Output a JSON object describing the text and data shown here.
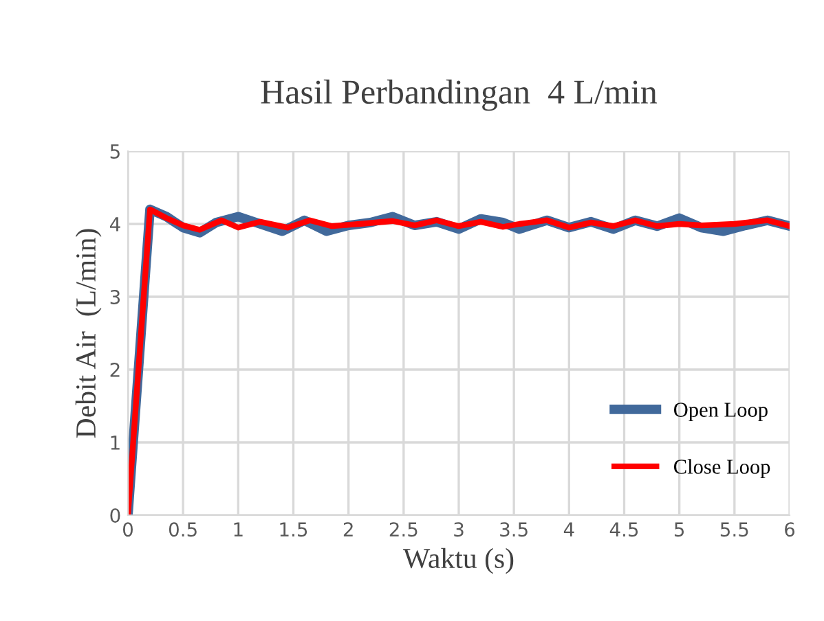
{
  "chart_data": {
    "type": "line",
    "title": "Hasil Perbandingan  4 L/min",
    "xlabel": "Waktu (s)",
    "ylabel": "Debit Air  (L/min)",
    "xlim": [
      0,
      6
    ],
    "ylim": [
      0,
      5
    ],
    "xticks": [
      0,
      0.5,
      1,
      1.5,
      2,
      2.5,
      3,
      3.5,
      4,
      4.5,
      5,
      5.5,
      6
    ],
    "yticks": [
      0,
      1,
      2,
      3,
      4,
      5
    ],
    "grid": true,
    "legend": "bottom right",
    "marker": "none",
    "series": [
      {
        "name": "Open Loop",
        "color": "#41699b",
        "x": [
          0,
          0.2,
          0.35,
          0.5,
          0.65,
          0.8,
          1.0,
          1.2,
          1.4,
          1.6,
          1.8,
          2.0,
          2.2,
          2.4,
          2.6,
          2.8,
          3.0,
          3.2,
          3.4,
          3.55,
          3.8,
          4.0,
          4.2,
          4.4,
          4.6,
          4.8,
          5.0,
          5.2,
          5.4,
          5.6,
          5.8,
          6.0
        ],
        "values": [
          0,
          4.2,
          4.1,
          3.95,
          3.88,
          4.02,
          4.1,
          4.0,
          3.9,
          4.05,
          3.9,
          3.98,
          4.02,
          4.1,
          3.98,
          4.03,
          3.93,
          4.07,
          4.02,
          3.93,
          4.05,
          3.95,
          4.03,
          3.93,
          4.05,
          3.97,
          4.08,
          3.95,
          3.9,
          3.98,
          4.05,
          3.97
        ]
      },
      {
        "name": "Close Loop",
        "color": "#ff0000",
        "x": [
          0,
          0.2,
          0.35,
          0.5,
          0.65,
          0.85,
          1.0,
          1.2,
          1.45,
          1.65,
          1.85,
          2.1,
          2.4,
          2.6,
          2.8,
          3.0,
          3.2,
          3.4,
          3.55,
          3.8,
          4.0,
          4.2,
          4.4,
          4.6,
          4.8,
          5.0,
          5.2,
          5.5,
          5.8,
          6.0
        ],
        "values": [
          0,
          4.2,
          4.08,
          3.98,
          3.92,
          4.05,
          3.95,
          4.03,
          3.95,
          4.05,
          3.97,
          4.0,
          4.04,
          3.98,
          4.05,
          3.97,
          4.03,
          3.96,
          4.0,
          4.05,
          3.95,
          4.02,
          3.97,
          4.05,
          3.97,
          4.0,
          3.98,
          4.0,
          4.05,
          3.97
        ]
      }
    ]
  }
}
